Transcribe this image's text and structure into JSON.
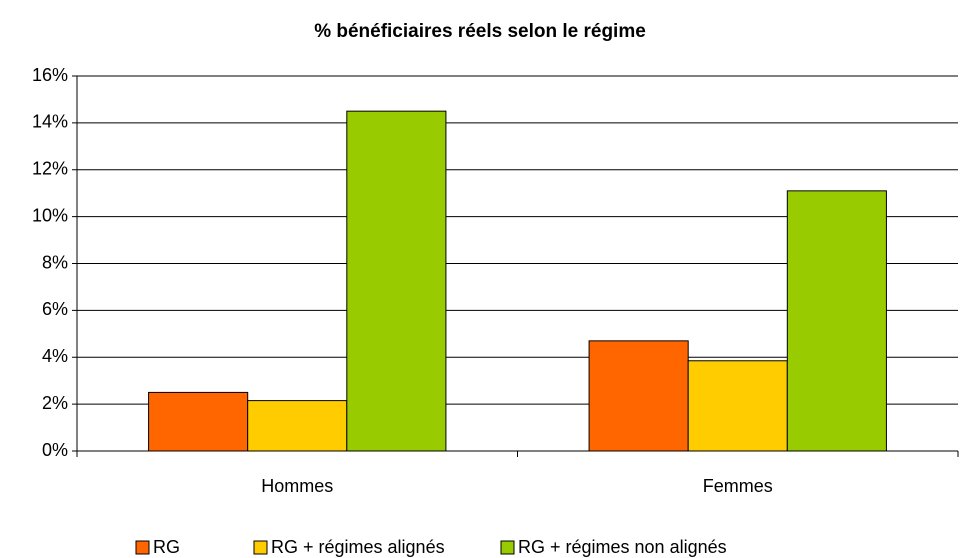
{
  "chart_data": {
    "type": "bar",
    "title": "% bénéficiaires réels selon le régime",
    "categories": [
      "Hommes",
      "Femmes"
    ],
    "series": [
      {
        "name": "RG",
        "color": "#ff6600",
        "values": [
          2.5,
          4.7
        ]
      },
      {
        "name": "RG + régimes alignés",
        "color": "#ffcc00",
        "values": [
          2.15,
          3.85
        ]
      },
      {
        "name": "RG + régimes non alignés",
        "color": "#99cc00",
        "values": [
          14.5,
          11.1
        ]
      }
    ],
    "ylim": [
      0,
      16
    ],
    "yticks": [
      {
        "value": 0,
        "label": "0%"
      },
      {
        "value": 2,
        "label": "2%"
      },
      {
        "value": 4,
        "label": "4%"
      },
      {
        "value": 6,
        "label": "6%"
      },
      {
        "value": 8,
        "label": "8%"
      },
      {
        "value": 10,
        "label": "10%"
      },
      {
        "value": 12,
        "label": "12%"
      },
      {
        "value": 14,
        "label": "14%"
      },
      {
        "value": 16,
        "label": "16%"
      }
    ],
    "grid": true,
    "legend": "bottom"
  }
}
